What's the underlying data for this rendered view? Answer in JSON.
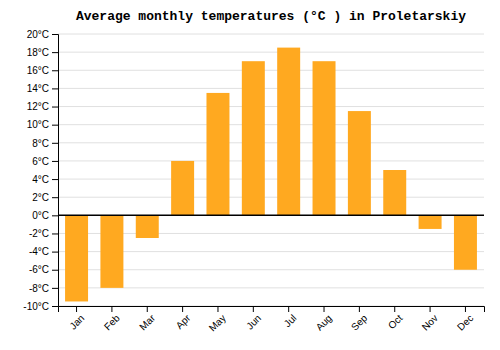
{
  "chart_data": {
    "type": "bar",
    "title": "Average monthly temperatures (°C ) in Proletarskiy",
    "categories": [
      "Jan",
      "Feb",
      "Mar",
      "Apr",
      "May",
      "Jun",
      "Jul",
      "Aug",
      "Sep",
      "Oct",
      "Nov",
      "Dec"
    ],
    "values": [
      -9.5,
      -8.0,
      -2.5,
      6.0,
      13.5,
      17.0,
      18.5,
      17.0,
      11.5,
      5.0,
      -1.5,
      -6.0
    ],
    "color": "#FFA920",
    "ylim": [
      -10,
      20
    ],
    "yticks": [
      {
        "value": -10,
        "label": "-10°C"
      },
      {
        "value": -8,
        "label": "-8°C"
      },
      {
        "value": -6,
        "label": "-6°C"
      },
      {
        "value": -4,
        "label": "-4°C"
      },
      {
        "value": -2,
        "label": "-2°C"
      },
      {
        "value": 0,
        "label": "0°C"
      },
      {
        "value": 2,
        "label": "2°C"
      },
      {
        "value": 4,
        "label": "4°C"
      },
      {
        "value": 6,
        "label": "6°C"
      },
      {
        "value": 8,
        "label": "8°C"
      },
      {
        "value": 10,
        "label": "10°C"
      },
      {
        "value": 12,
        "label": "12°C"
      },
      {
        "value": 14,
        "label": "14°C"
      },
      {
        "value": 16,
        "label": "16°C"
      },
      {
        "value": 18,
        "label": "18°C"
      },
      {
        "value": 20,
        "label": "20°C"
      }
    ],
    "grid": true
  }
}
